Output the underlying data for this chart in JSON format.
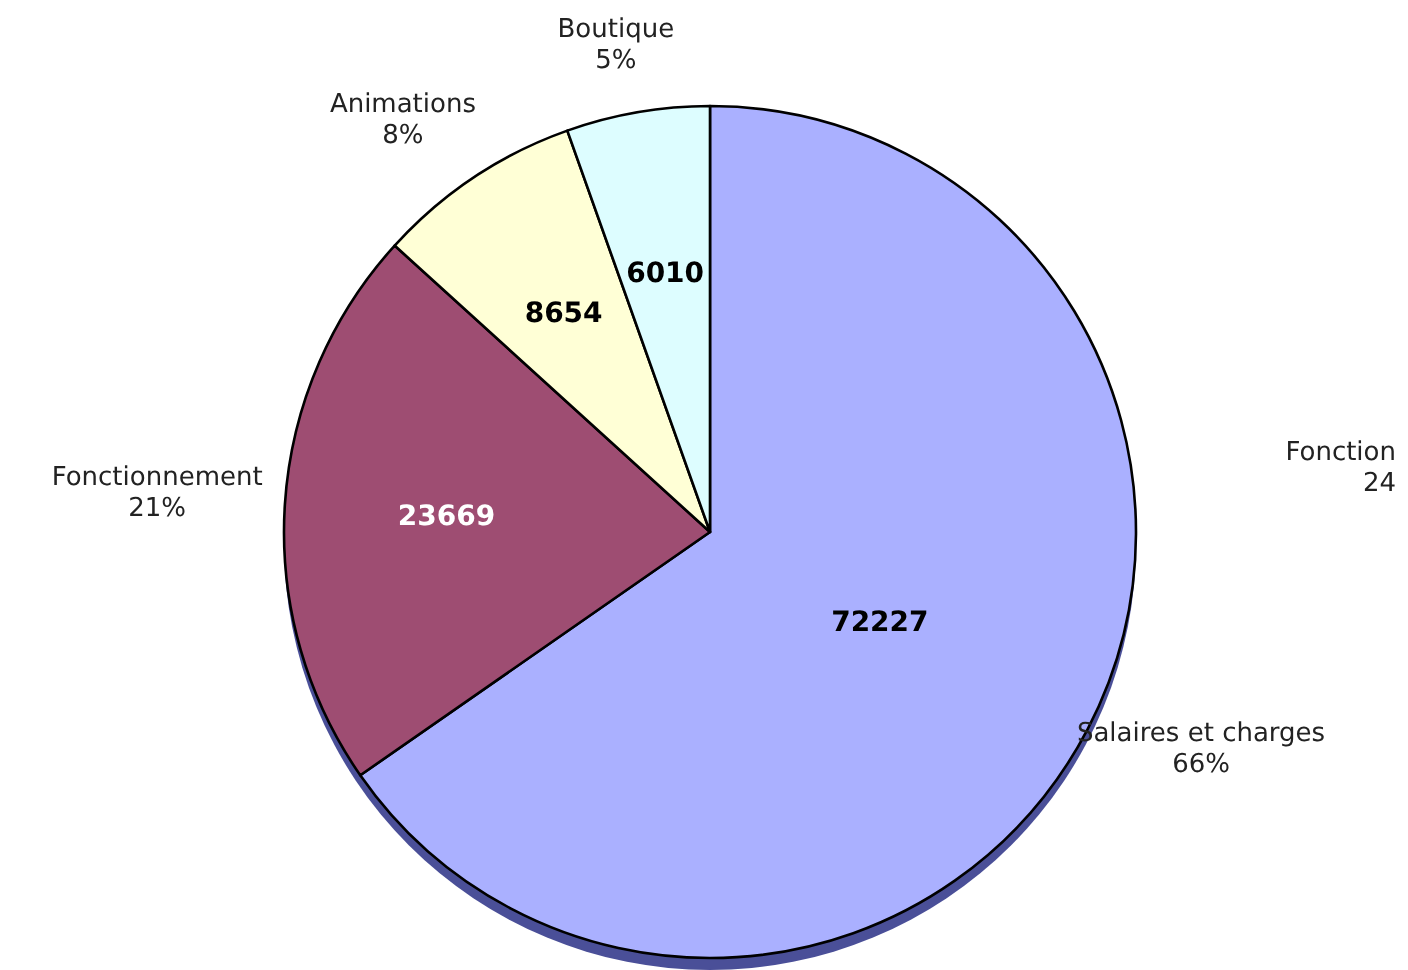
{
  "chart_data": {
    "type": "pie",
    "categories": [
      "Salaires et charges",
      "Fonctionnement",
      "Animations",
      "Boutique"
    ],
    "values": [
      72227,
      23669,
      8654,
      6010
    ],
    "colors": [
      "#aab0ff",
      "#9e4d72",
      "#ffffd6",
      "#ddfdff"
    ],
    "data_labels": true,
    "annotations": [
      "66%",
      "21%",
      "8%",
      "5%",
      "Fonction",
      "24"
    ]
  }
}
